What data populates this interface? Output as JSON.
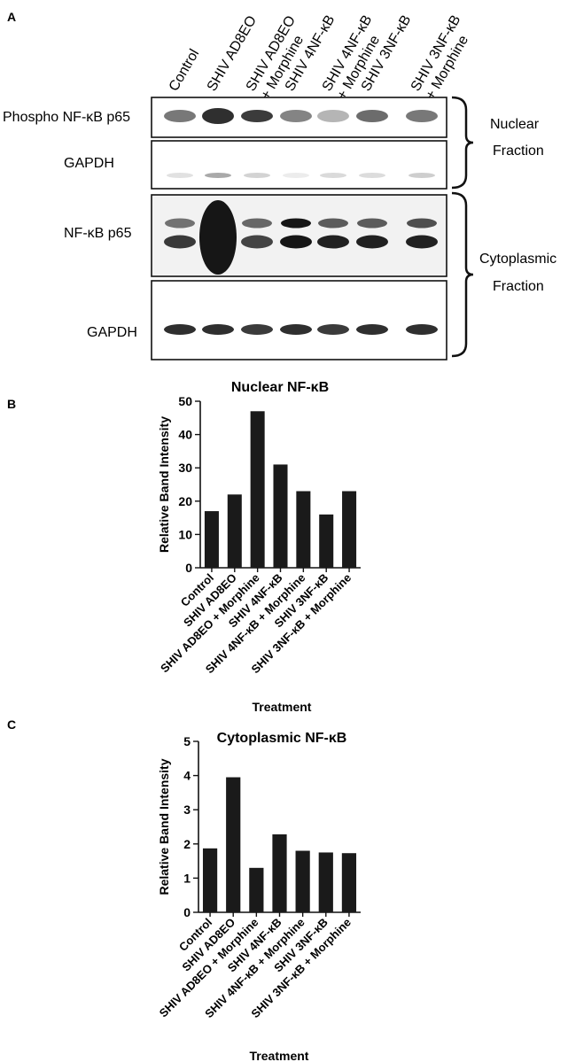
{
  "figure": {
    "panel_letters": [
      "A",
      "B",
      "C"
    ]
  },
  "blot": {
    "lane_labels": [
      [
        "Control"
      ],
      [
        "SHIV AD8EO"
      ],
      [
        "SHIV AD8EO",
        "+ Morphine"
      ],
      [
        "SHIV 4NF-κB"
      ],
      [
        "SHIV 4NF-κB",
        "+ Morphine"
      ],
      [
        "SHIV 3NF-κB"
      ],
      [
        "SHIV 3NF-κB",
        "+ Morphine"
      ]
    ],
    "row_labels": [
      "Phospho NF-κB p65",
      "GAPDH",
      "NF-κB p65",
      "GAPDH"
    ],
    "fraction_labels": {
      "nuclear": [
        "Nuclear",
        "Fraction"
      ],
      "cytoplasmic": [
        "Cytoplasmic",
        "Fraction"
      ]
    },
    "band_intensity": {
      "phospho_p65": [
        0.55,
        0.85,
        0.8,
        0.5,
        0.3,
        0.6,
        0.55
      ],
      "gapdh_nuclear": [
        0.12,
        0.35,
        0.18,
        0.08,
        0.15,
        0.14,
        0.2
      ],
      "p65_upper": [
        0.55,
        1.0,
        0.6,
        0.95,
        0.65,
        0.65,
        0.7
      ],
      "p65_lower": [
        0.8,
        1.0,
        0.75,
        0.95,
        0.9,
        0.9,
        0.9
      ],
      "gapdh_cyto": [
        0.85,
        0.85,
        0.8,
        0.85,
        0.8,
        0.85,
        0.85
      ]
    }
  },
  "chart_data": [
    {
      "type": "bar",
      "title": "Nuclear NF-κB",
      "xlabel": "Treatment",
      "ylabel": "Relative Band Intensity",
      "categories": [
        "Control",
        "SHIV AD8EO",
        "SHIV AD8EO + Morphine",
        "SHIV 4NF-κB",
        "SHIV 4NF-κB + Morphine",
        "SHIV 3NF-κB",
        "SHIV 3NF-κB + Morphine"
      ],
      "values": [
        17,
        22,
        47,
        31,
        23,
        16,
        23
      ],
      "ylim": [
        0,
        50
      ],
      "yticks": [
        "0",
        "10",
        "20",
        "30",
        "40",
        "50"
      ],
      "ytick_values": [
        0,
        10,
        20,
        30,
        40,
        50
      ],
      "grid": false,
      "bar_color": "#1a1a1a"
    },
    {
      "type": "bar",
      "title": "Cytoplasmic NF-κB",
      "xlabel": "Treatment",
      "ylabel": "Relative Band Intensity",
      "categories": [
        "Control",
        "SHIV AD8EO",
        "SHIV AD8EO + Morphine",
        "SHIV 4NF-κB",
        "SHIV 4NF-κB + Morphine",
        "SHIV 3NF-κB",
        "SHIV 3NF-κB + Morphine"
      ],
      "values": [
        1.87,
        3.95,
        1.3,
        2.28,
        1.8,
        1.75,
        1.73
      ],
      "ylim": [
        0,
        5
      ],
      "yticks": [
        "0",
        "1",
        "2",
        "3",
        "4",
        "5"
      ],
      "ytick_values": [
        0,
        1,
        2,
        3,
        4,
        5
      ],
      "grid": false,
      "bar_color": "#1a1a1a"
    }
  ]
}
